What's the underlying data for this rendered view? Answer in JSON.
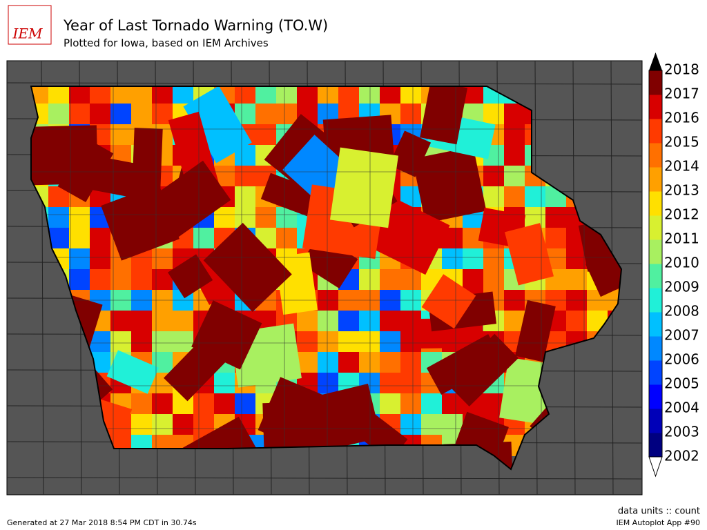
{
  "logo": "IEM",
  "header": {
    "title": "Year of Last Tornado Warning (TO.W)",
    "subtitle": "Plotted for Iowa, based on IEM Archives"
  },
  "legend": {
    "levels": [
      2002,
      2003,
      2004,
      2005,
      2006,
      2007,
      2008,
      2009,
      2010,
      2011,
      2012,
      2013,
      2014,
      2015,
      2016,
      2017,
      2018
    ],
    "colors": [
      "#000080",
      "#0000b8",
      "#0000ff",
      "#0044ff",
      "#0088ff",
      "#00c0ff",
      "#20f0d8",
      "#50f0a0",
      "#a8f060",
      "#d8f030",
      "#ffe000",
      "#ffa000",
      "#ff7000",
      "#ff3a00",
      "#d80000",
      "#800000"
    ],
    "over_color": "#000000",
    "under_color": "#ffffff"
  },
  "footer": {
    "generated": "Generated at 27 Mar 2018 8:54 PM CDT in 30.74s",
    "units": "data units :: count",
    "app": "IEM Autoplot App #90"
  }
}
